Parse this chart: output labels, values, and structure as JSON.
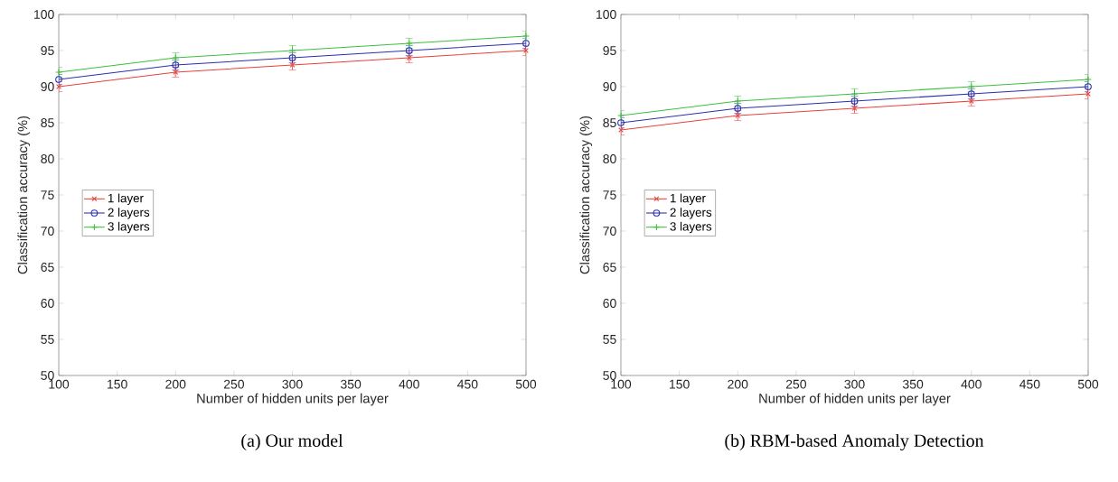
{
  "chart_data": [
    {
      "type": "line",
      "title": "(a) Our model",
      "xlabel": "Number of hidden units per layer",
      "ylabel": "Classification accuracy (%)",
      "x": [
        100,
        200,
        300,
        400,
        500
      ],
      "xlim": [
        100,
        500
      ],
      "xticks": [
        100,
        150,
        200,
        250,
        300,
        350,
        400,
        450,
        500
      ],
      "ylim": [
        50,
        100
      ],
      "yticks": [
        50,
        55,
        60,
        65,
        70,
        75,
        80,
        85,
        90,
        95,
        100
      ],
      "grid": false,
      "legend": "left",
      "series": [
        {
          "name": "1 layer",
          "color": "#e8413c",
          "marker": "cross",
          "values": [
            90,
            92,
            93,
            94,
            95
          ],
          "errors": [
            0.7,
            0.7,
            0.7,
            0.7,
            0.7
          ]
        },
        {
          "name": "2 layers",
          "color": "#2b2fb0",
          "marker": "circle",
          "values": [
            91,
            93,
            94,
            95,
            96
          ],
          "errors": [
            0.7,
            0.7,
            0.7,
            0.7,
            0.7
          ]
        },
        {
          "name": "3 layers",
          "color": "#3cc03c",
          "marker": "plus",
          "values": [
            92,
            94,
            95,
            96,
            97
          ],
          "errors": [
            0.7,
            0.7,
            0.7,
            0.7,
            0.7
          ]
        }
      ]
    },
    {
      "type": "line",
      "title": "(b) RBM-based Anomaly Detection",
      "xlabel": "Number of hidden units per layer",
      "ylabel": "Classification accuracy (%)",
      "x": [
        100,
        200,
        300,
        400,
        500
      ],
      "xlim": [
        100,
        500
      ],
      "xticks": [
        100,
        150,
        200,
        250,
        300,
        350,
        400,
        450,
        500
      ],
      "ylim": [
        50,
        100
      ],
      "yticks": [
        50,
        55,
        60,
        65,
        70,
        75,
        80,
        85,
        90,
        95,
        100
      ],
      "grid": false,
      "legend": "left",
      "series": [
        {
          "name": "1 layer",
          "color": "#e8413c",
          "marker": "cross",
          "values": [
            84,
            86,
            87,
            88,
            89
          ],
          "errors": [
            0.7,
            0.7,
            0.7,
            0.7,
            0.7
          ]
        },
        {
          "name": "2 layers",
          "color": "#2b2fb0",
          "marker": "circle",
          "values": [
            85,
            87,
            88,
            89,
            90
          ],
          "errors": [
            0.7,
            0.7,
            0.7,
            0.7,
            0.7
          ]
        },
        {
          "name": "3 layers",
          "color": "#3cc03c",
          "marker": "plus",
          "values": [
            86,
            88,
            89,
            90,
            91
          ],
          "errors": [
            0.7,
            0.7,
            0.7,
            0.7,
            0.7
          ]
        }
      ]
    }
  ]
}
